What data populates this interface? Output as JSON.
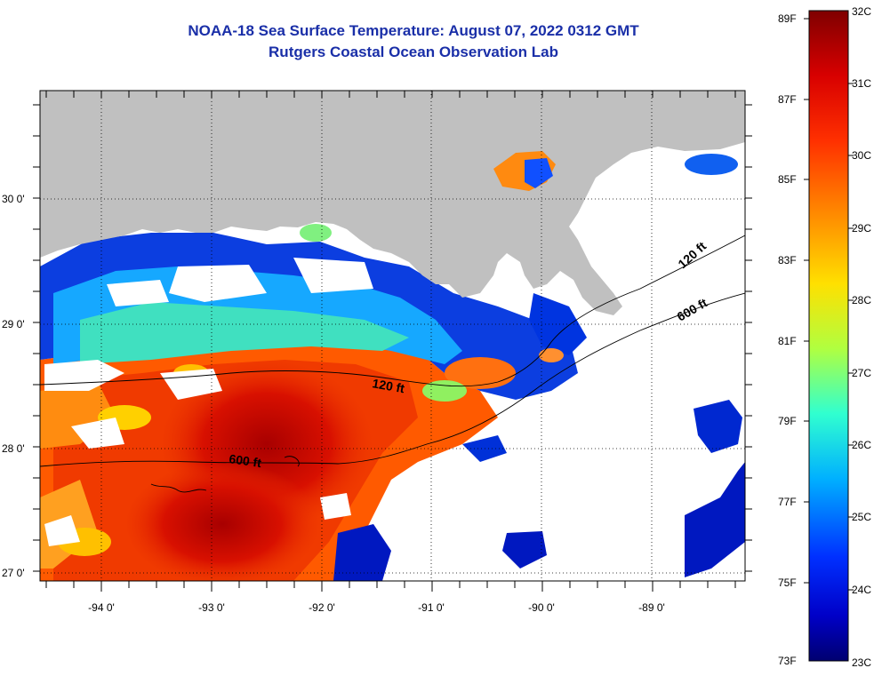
{
  "header": {
    "title": "NOAA-18 Sea Surface Temperature:  August 07, 2022 0312 GMT",
    "subtitle": "Rutgers Coastal Ocean Observation Lab"
  },
  "map": {
    "lat_labels": [
      "30 0'",
      "29 0'",
      "28 0'",
      "27 0'"
    ],
    "lon_labels": [
      "-94 0'",
      "-93 0'",
      "-92 0'",
      "-91 0'",
      "-90 0'",
      "-89 0'"
    ],
    "contours": [
      "120 ft",
      "600 ft",
      "120 ft",
      "600 ft"
    ],
    "colors": {
      "land": "#c0c0c0",
      "cloud": "#ffffff"
    }
  },
  "colorbar": {
    "fahrenheit_labels": [
      "89F",
      "87F",
      "85F",
      "83F",
      "81F",
      "79F",
      "77F",
      "75F",
      "73F"
    ],
    "celsius_labels": [
      "32C",
      "31C",
      "30C",
      "29C",
      "28C",
      "27C",
      "26C",
      "25C",
      "24C",
      "23C"
    ],
    "colors": [
      "#7f0000",
      "#e00000",
      "#ff6000",
      "#ffd000",
      "#e0ff20",
      "#40ffc0",
      "#00c0ff",
      "#0040ff",
      "#0000c0",
      "#00007f"
    ]
  }
}
